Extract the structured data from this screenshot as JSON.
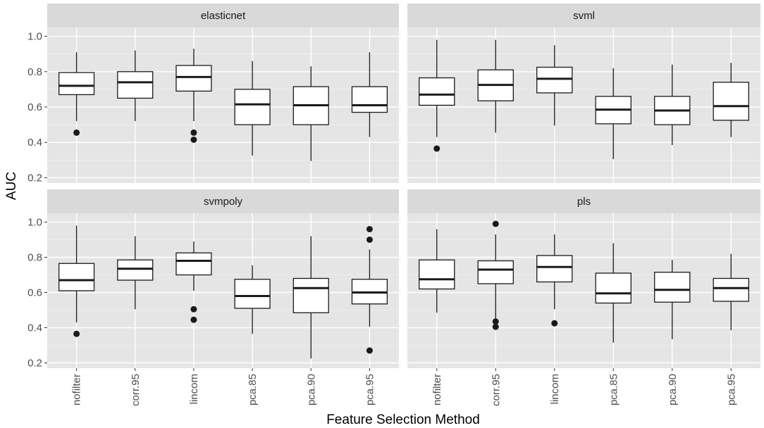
{
  "chart_data": {
    "type": "box",
    "xlabel": "Feature Selection Method",
    "ylabel": "AUC",
    "ylim": [
      0.17,
      1.05
    ],
    "yticks": [
      0.2,
      0.4,
      0.6,
      0.8,
      1.0
    ],
    "ytick_labels": [
      "0.2",
      "0.4",
      "0.6",
      "0.8",
      "1.0"
    ],
    "categories": [
      "nofilter",
      "corr.95",
      "lincom",
      "pca.85",
      "pca.90",
      "pca.95"
    ],
    "facets": [
      {
        "title": "elasticnet",
        "boxes": [
          {
            "category": "nofilter",
            "lower_whisker": 0.52,
            "q1": 0.67,
            "median": 0.72,
            "q3": 0.795,
            "upper_whisker": 0.91,
            "outliers": [
              0.455
            ]
          },
          {
            "category": "corr.95",
            "lower_whisker": 0.52,
            "q1": 0.65,
            "median": 0.74,
            "q3": 0.8,
            "upper_whisker": 0.92,
            "outliers": []
          },
          {
            "category": "lincom",
            "lower_whisker": 0.52,
            "q1": 0.69,
            "median": 0.77,
            "q3": 0.835,
            "upper_whisker": 0.93,
            "outliers": [
              0.455,
              0.415
            ]
          },
          {
            "category": "pca.85",
            "lower_whisker": 0.325,
            "q1": 0.5,
            "median": 0.615,
            "q3": 0.7,
            "upper_whisker": 0.86,
            "outliers": []
          },
          {
            "category": "pca.90",
            "lower_whisker": 0.295,
            "q1": 0.5,
            "median": 0.61,
            "q3": 0.715,
            "upper_whisker": 0.83,
            "outliers": []
          },
          {
            "category": "pca.95",
            "lower_whisker": 0.43,
            "q1": 0.57,
            "median": 0.61,
            "q3": 0.715,
            "upper_whisker": 0.91,
            "outliers": []
          }
        ]
      },
      {
        "title": "svml",
        "boxes": [
          {
            "category": "nofilter",
            "lower_whisker": 0.43,
            "q1": 0.61,
            "median": 0.67,
            "q3": 0.765,
            "upper_whisker": 0.98,
            "outliers": [
              0.365
            ]
          },
          {
            "category": "corr.95",
            "lower_whisker": 0.455,
            "q1": 0.635,
            "median": 0.725,
            "q3": 0.81,
            "upper_whisker": 0.98,
            "outliers": []
          },
          {
            "category": "lincom",
            "lower_whisker": 0.495,
            "q1": 0.68,
            "median": 0.76,
            "q3": 0.825,
            "upper_whisker": 0.95,
            "outliers": []
          },
          {
            "category": "pca.85",
            "lower_whisker": 0.305,
            "q1": 0.505,
            "median": 0.585,
            "q3": 0.66,
            "upper_whisker": 0.82,
            "outliers": []
          },
          {
            "category": "pca.90",
            "lower_whisker": 0.385,
            "q1": 0.5,
            "median": 0.58,
            "q3": 0.66,
            "upper_whisker": 0.84,
            "outliers": []
          },
          {
            "category": "pca.95",
            "lower_whisker": 0.43,
            "q1": 0.525,
            "median": 0.605,
            "q3": 0.74,
            "upper_whisker": 0.85,
            "outliers": []
          }
        ]
      },
      {
        "title": "svmpoly",
        "boxes": [
          {
            "category": "nofilter",
            "lower_whisker": 0.43,
            "q1": 0.61,
            "median": 0.67,
            "q3": 0.765,
            "upper_whisker": 0.98,
            "outliers": [
              0.365
            ]
          },
          {
            "category": "corr.95",
            "lower_whisker": 0.505,
            "q1": 0.67,
            "median": 0.735,
            "q3": 0.785,
            "upper_whisker": 0.92,
            "outliers": []
          },
          {
            "category": "lincom",
            "lower_whisker": 0.61,
            "q1": 0.7,
            "median": 0.78,
            "q3": 0.825,
            "upper_whisker": 0.89,
            "outliers": [
              0.505,
              0.445
            ]
          },
          {
            "category": "pca.85",
            "lower_whisker": 0.365,
            "q1": 0.51,
            "median": 0.58,
            "q3": 0.675,
            "upper_whisker": 0.755,
            "outliers": []
          },
          {
            "category": "pca.90",
            "lower_whisker": 0.225,
            "q1": 0.485,
            "median": 0.625,
            "q3": 0.68,
            "upper_whisker": 0.92,
            "outliers": []
          },
          {
            "category": "pca.95",
            "lower_whisker": 0.405,
            "q1": 0.535,
            "median": 0.6,
            "q3": 0.675,
            "upper_whisker": 0.845,
            "outliers": [
              0.96,
              0.9,
              0.27
            ]
          }
        ]
      },
      {
        "title": "pls",
        "boxes": [
          {
            "category": "nofilter",
            "lower_whisker": 0.485,
            "q1": 0.62,
            "median": 0.675,
            "q3": 0.785,
            "upper_whisker": 0.96,
            "outliers": []
          },
          {
            "category": "corr.95",
            "lower_whisker": 0.45,
            "q1": 0.65,
            "median": 0.73,
            "q3": 0.78,
            "upper_whisker": 0.93,
            "outliers": [
              0.99,
              0.435,
              0.405
            ]
          },
          {
            "category": "lincom",
            "lower_whisker": 0.505,
            "q1": 0.66,
            "median": 0.745,
            "q3": 0.81,
            "upper_whisker": 0.93,
            "outliers": [
              0.425
            ]
          },
          {
            "category": "pca.85",
            "lower_whisker": 0.315,
            "q1": 0.54,
            "median": 0.595,
            "q3": 0.71,
            "upper_whisker": 0.88,
            "outliers": []
          },
          {
            "category": "pca.90",
            "lower_whisker": 0.335,
            "q1": 0.545,
            "median": 0.615,
            "q3": 0.715,
            "upper_whisker": 0.785,
            "outliers": []
          },
          {
            "category": "pca.95",
            "lower_whisker": 0.385,
            "q1": 0.55,
            "median": 0.625,
            "q3": 0.68,
            "upper_whisker": 0.82,
            "outliers": []
          }
        ]
      }
    ],
    "colors": {
      "panel_bg": "#e5e5e5",
      "strip_bg": "#d9d9d9",
      "grid_major": "#ffffff",
      "box_fill": "#ffffff",
      "box_stroke": "#1a1a1a",
      "outlier": "#1a1a1a",
      "axis_text": "#4d4d4d",
      "title_text": "#1a1a1a"
    }
  }
}
